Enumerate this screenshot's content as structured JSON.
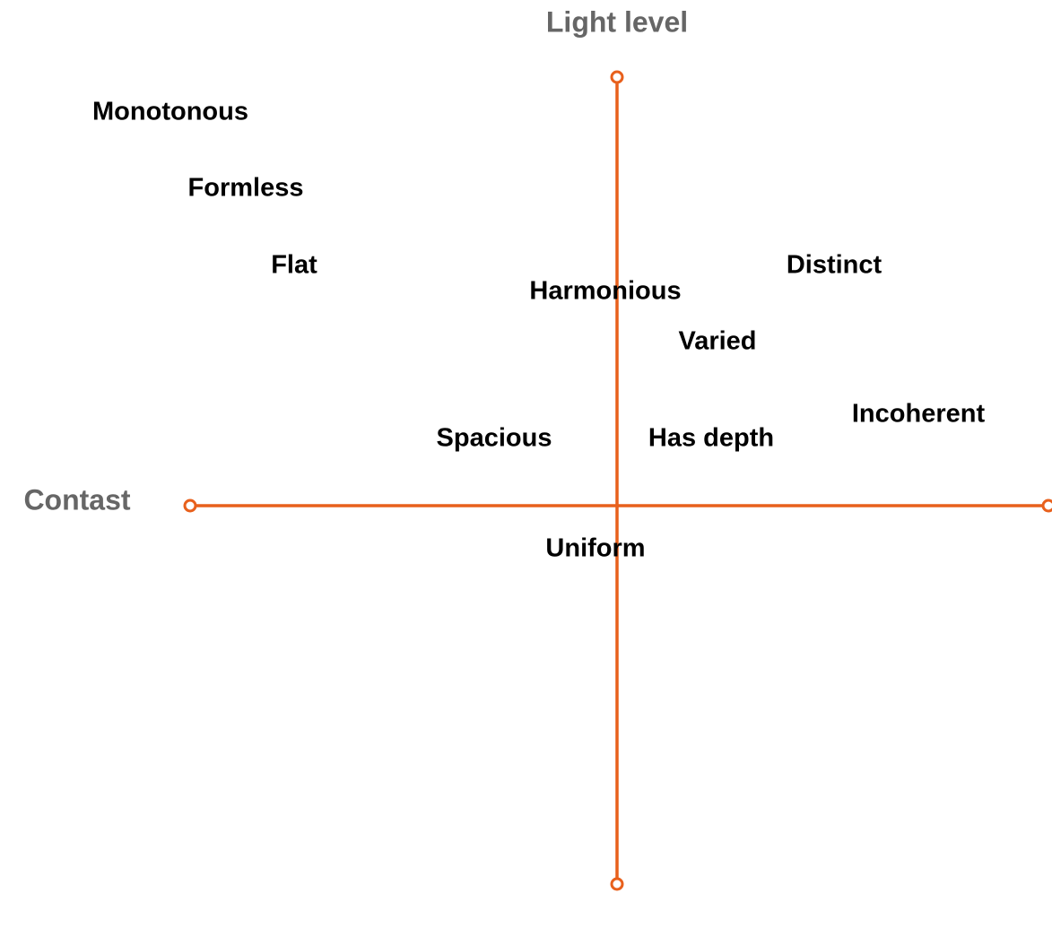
{
  "axes": {
    "vertical": "Light level",
    "horizontal": "Contast"
  },
  "terms": [
    "Monotonous",
    "Formless",
    "Flat",
    "Harmonious",
    "Distinct",
    "Varied",
    "Incoherent",
    "Spacious",
    "Has depth",
    "Uniform"
  ]
}
